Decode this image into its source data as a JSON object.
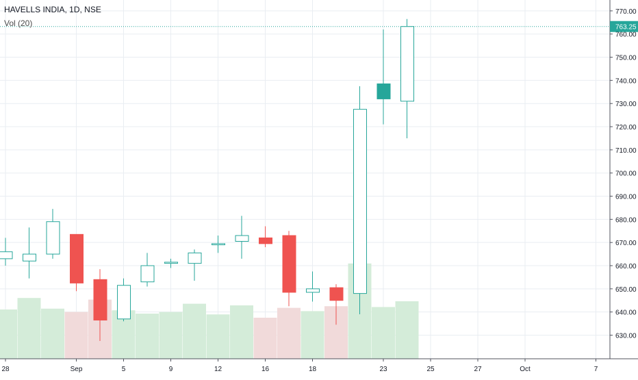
{
  "header": {
    "symbol_line": "HAVELLS INDIA, 1D, NSE",
    "volume_indicator": "Vol (20)"
  },
  "colors": {
    "up": "#26a69a",
    "down": "#ef5350",
    "volume_up": "#d4ecd9",
    "volume_down": "#f1dada",
    "grid": "#e9edf2",
    "last_price_tag": "#26a69a"
  },
  "chart_data": {
    "type": "candlestick",
    "title": "HAVELLS INDIA, 1D, NSE",
    "ylim": [
      620,
      772
    ],
    "y_ticks": [
      630,
      640,
      650,
      660,
      670,
      680,
      690,
      700,
      710,
      720,
      730,
      740,
      750,
      760,
      770
    ],
    "y_tick_labels": [
      "630.00",
      "640.00",
      "650.00",
      "660.00",
      "670.00",
      "680.00",
      "690.00",
      "700.00",
      "710.00",
      "720.00",
      "730.00",
      "740.00",
      "750.00",
      "760.00",
      "770.00"
    ],
    "last_price": 763.25,
    "last_price_label": "763.25",
    "x_ticks": [
      {
        "label": "28",
        "day": 0
      },
      {
        "label": "Sep",
        "day": 3
      },
      {
        "label": "5",
        "day": 5
      },
      {
        "label": "9",
        "day": 7
      },
      {
        "label": "12",
        "day": 9
      },
      {
        "label": "16",
        "day": 11
      },
      {
        "label": "18",
        "day": 13
      },
      {
        "label": "23",
        "day": 16
      },
      {
        "label": "25",
        "day": 18
      },
      {
        "label": "27",
        "day": 20
      },
      {
        "label": "Oct",
        "day": 22
      },
      {
        "label": "7",
        "day": 25
      }
    ],
    "candles": [
      {
        "open": 663,
        "high": 672,
        "low": 660,
        "close": 666,
        "volume": 30
      },
      {
        "open": 662,
        "high": 676.5,
        "low": 654.5,
        "close": 665,
        "volume": 37
      },
      {
        "open": 665,
        "high": 684.5,
        "low": 663,
        "close": 679,
        "volume": 30.5
      },
      {
        "open": 673.5,
        "high": 673.5,
        "low": 649,
        "close": 652.5,
        "volume": 28.5
      },
      {
        "open": 654,
        "high": 658.5,
        "low": 627.5,
        "close": 636.5,
        "volume": 36
      },
      {
        "open": 637,
        "high": 654.5,
        "low": 636,
        "close": 651.5,
        "volume": 29.5
      },
      {
        "open": 653,
        "high": 665.5,
        "low": 651,
        "close": 660,
        "volume": 27.5
      },
      {
        "open": 661,
        "high": 663,
        "low": 659,
        "close": 661.5,
        "volume": 28.5
      },
      {
        "open": 661,
        "high": 667,
        "low": 653.5,
        "close": 665.5,
        "volume": 33.5
      },
      {
        "open": 669,
        "high": 673,
        "low": 665.5,
        "close": 669.5,
        "volume": 27
      },
      {
        "open": 670.5,
        "high": 681.5,
        "low": 663,
        "close": 673,
        "volume": 32.5
      },
      {
        "open": 672,
        "high": 677,
        "low": 668,
        "close": 669.5,
        "volume": 25
      },
      {
        "open": 673,
        "high": 675,
        "low": 642.5,
        "close": 648.5,
        "volume": 31
      },
      {
        "open": 648.5,
        "high": 657.5,
        "low": 644.5,
        "close": 650,
        "volume": 29
      },
      {
        "open": 650.5,
        "high": 652,
        "low": 634.5,
        "close": 645,
        "volume": 32
      },
      {
        "open": 648,
        "high": 737.5,
        "low": 639,
        "close": 727.5,
        "volume": 58
      },
      {
        "open": 732,
        "high": 762,
        "low": 721,
        "close": 738.5,
        "volume": 31.5
      },
      {
        "open": 731,
        "high": 766.5,
        "low": 715,
        "close": 763.25,
        "volume": 35
      }
    ]
  }
}
